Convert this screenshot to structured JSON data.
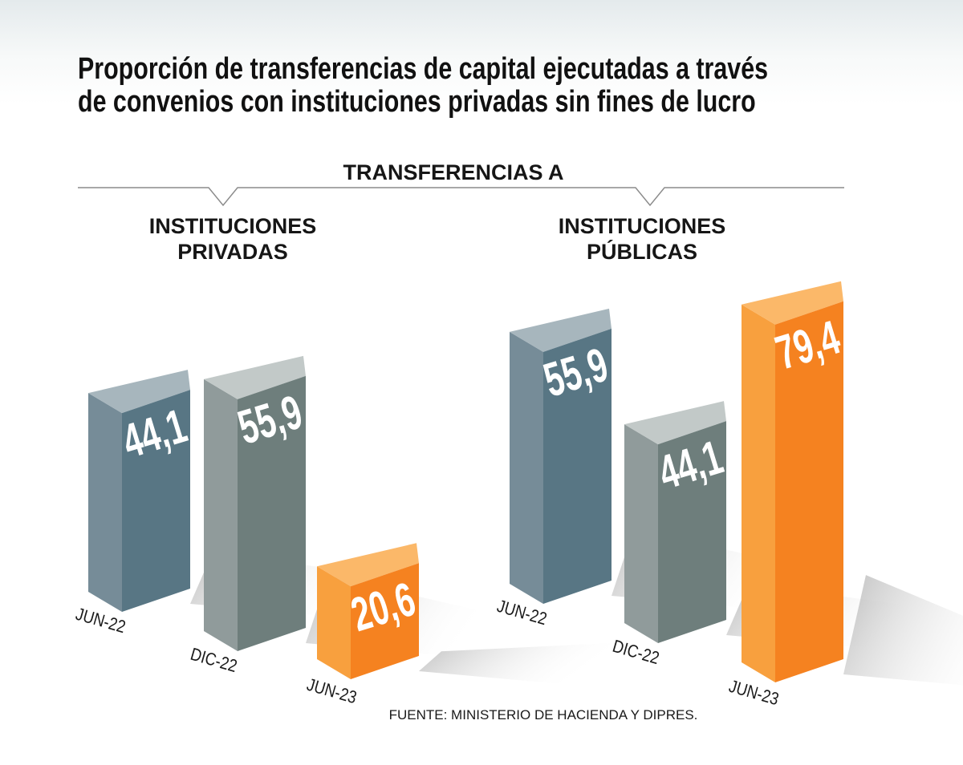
{
  "title_lines": [
    "Proporción de transferencias de capital ejecutadas a través",
    "de convenios con instituciones privadas sin fines de lucro"
  ],
  "chart_data": [
    {
      "type": "bar",
      "header": "TRANSFERENCIAS A",
      "group_lines": [
        "INSTITUCIONES",
        "PRIVADAS"
      ],
      "categories": [
        "JUN-22",
        "DIC-22",
        "JUN-23"
      ],
      "values": [
        44.1,
        55.9,
        20.6
      ],
      "value_labels": [
        "44,1",
        "55,9",
        "20,6"
      ]
    },
    {
      "type": "bar",
      "header": "TRANSFERENCIAS A",
      "group_lines": [
        "INSTITUCIONES",
        "PÚBLICAS"
      ],
      "categories": [
        "JUN-22",
        "DIC-22",
        "JUN-23"
      ],
      "values": [
        55.9,
        44.1,
        79.4
      ],
      "value_labels": [
        "55,9",
        "44,1",
        "79,4"
      ]
    }
  ],
  "colors": {
    "jun22": {
      "front": "#587684",
      "side": "#768c98",
      "top": "#a7b6bd"
    },
    "dic22": {
      "front": "#6e7e7c",
      "side": "#909b9b",
      "top": "#c2c9c8"
    },
    "jun23": {
      "front": "#f58220",
      "side": "#f8a03e",
      "top": "#fbb869"
    }
  },
  "source": "FUENTE: MINISTERIO DE HACIENDA Y DIPRES."
}
